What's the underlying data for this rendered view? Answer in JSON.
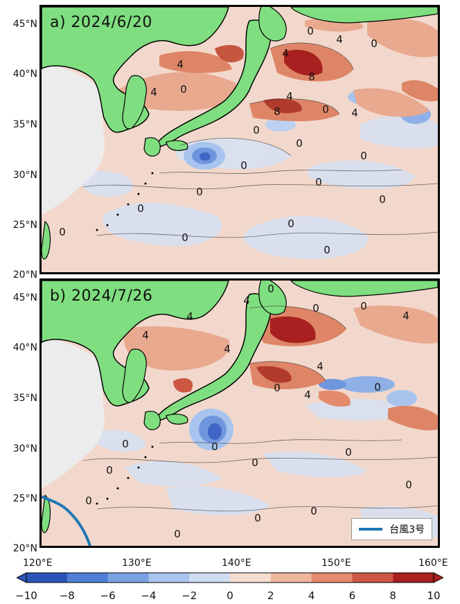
{
  "panels": [
    {
      "title": "a) 2024/6/20"
    },
    {
      "title": "b) 2024/7/26"
    }
  ],
  "y_ticks": [
    "45°N",
    "40°N",
    "35°N",
    "30°N",
    "25°N",
    "20°N"
  ],
  "x_ticks": [
    "120°E",
    "130°E",
    "140°E",
    "150°E",
    "160°E"
  ],
  "legend": {
    "label": "台風3号",
    "color": "#1f77b4"
  },
  "colorbar": {
    "ticks": [
      "−10",
      "−8",
      "−6",
      "−4",
      "−2",
      "0",
      "2",
      "4",
      "6",
      "8",
      "10"
    ],
    "range": [
      -10,
      10
    ],
    "colors": [
      "#2b55b8",
      "#4f7fd4",
      "#7aa1e2",
      "#a8c4ee",
      "#cfddf3",
      "#f5dcd0",
      "#efb79e",
      "#e38b6c",
      "#cc5843",
      "#a8201f"
    ]
  },
  "contour_labels": {
    "a": [
      "4",
      "4",
      "4",
      "4",
      "4",
      "4",
      "8",
      "8",
      "0",
      "0",
      "0",
      "0",
      "0",
      "0",
      "0",
      "0",
      "0",
      "0",
      "0"
    ],
    "b": [
      "4",
      "4",
      "4",
      "4",
      "4",
      "4",
      "4",
      "0",
      "0",
      "0",
      "0",
      "0",
      "0",
      "0",
      "0",
      "0",
      "0"
    ]
  },
  "colors": {
    "land": "#7fde7f",
    "china_shelf": "#ececec",
    "track": "#1f77b4"
  }
}
